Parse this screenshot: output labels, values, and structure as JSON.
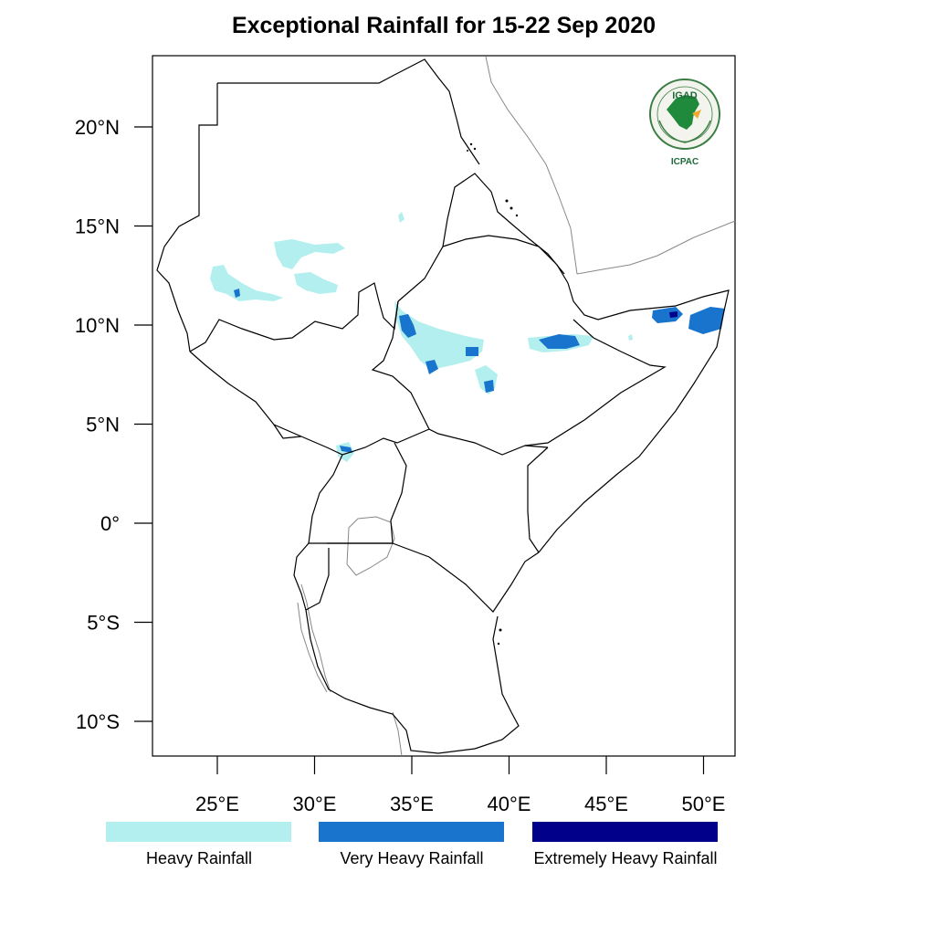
{
  "title": "Exceptional Rainfall for 15-22 Sep 2020",
  "map": {
    "lat_ticks": [
      {
        "value": 20,
        "label": "20°N"
      },
      {
        "value": 15,
        "label": "15°N"
      },
      {
        "value": 10,
        "label": "10°N"
      },
      {
        "value": 5,
        "label": "5°N"
      },
      {
        "value": 0,
        "label": "0°"
      },
      {
        "value": -5,
        "label": "5°S"
      },
      {
        "value": -10,
        "label": "10°S"
      }
    ],
    "lon_ticks": [
      {
        "value": 25,
        "label": "25°E"
      },
      {
        "value": 30,
        "label": "30°E"
      },
      {
        "value": 35,
        "label": "35°E"
      },
      {
        "value": 40,
        "label": "40°E"
      },
      {
        "value": 45,
        "label": "45°E"
      },
      {
        "value": 50,
        "label": "50°E"
      }
    ]
  },
  "legend": [
    {
      "label": "Heavy Rainfall",
      "color": "#b2efee"
    },
    {
      "label": "Very Heavy Rainfall",
      "color": "#1874cd"
    },
    {
      "label": "Extremely Heavy Rainfall",
      "color": "#00008b"
    }
  ],
  "logo": {
    "acronym": "IGAD",
    "subtitle": "ICPAC"
  }
}
